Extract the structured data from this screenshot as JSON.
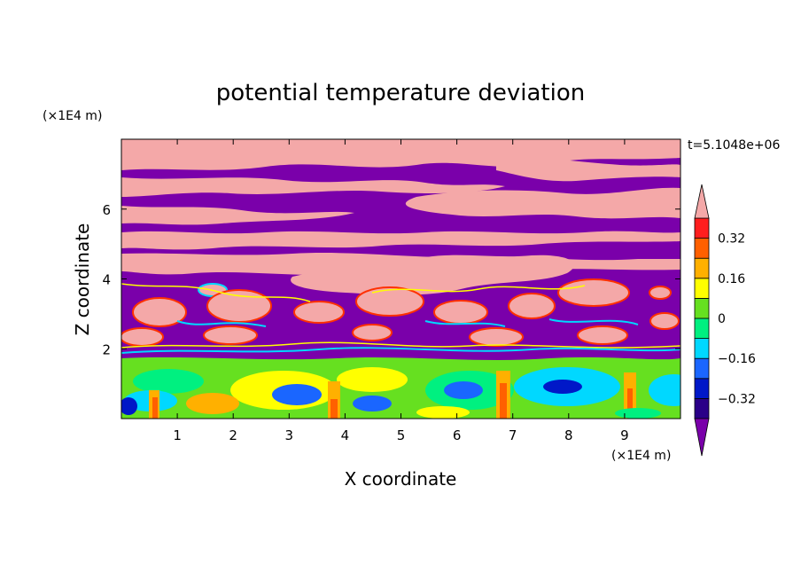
{
  "chart_data": {
    "type": "heatmap",
    "title": "potential temperature deviation",
    "xlabel": "X coordinate",
    "ylabel": "Z coordinate",
    "x_unit": "(×1E4 m)",
    "y_unit": "(×1E4 m)",
    "time_label": "t=5.1048e+06",
    "xlim": [
      0,
      10
    ],
    "ylim": [
      0,
      8
    ],
    "x_ticks": [
      "1",
      "2",
      "3",
      "4",
      "5",
      "6",
      "7",
      "8",
      "9"
    ],
    "y_ticks": [
      "2",
      "4",
      "6"
    ],
    "colorbar": {
      "levels": [
        -0.4,
        -0.32,
        -0.24,
        -0.16,
        -0.08,
        0,
        0.08,
        0.16,
        0.24,
        0.32,
        0.4
      ],
      "labels": [
        "0.32",
        "0.16",
        "0",
        "−0.16",
        "−0.32"
      ],
      "colors": [
        "#7a00aa",
        "#2a0088",
        "#0018c8",
        "#1a66ff",
        "#00d8ff",
        "#00f080",
        "#66e020",
        "#ffff00",
        "#ffb000",
        "#ff6000",
        "#ff1e1e",
        "#f4a8a8"
      ]
    },
    "regions": [
      {
        "band": "z 6.9–8.0",
        "dominant": "pink (> 0.40) with purple (< -0.40) streaks"
      },
      {
        "band": "z 4.3–6.9",
        "dominant": "alternating pink and purple layers"
      },
      {
        "band": "z 1.8–4.3",
        "dominant": "purple background with pink cells, cyan/yellow/red edges"
      },
      {
        "band": "z 0–1.7",
        "dominant": "green/yellow/cyan boundary layer with blue and red eddies"
      }
    ]
  }
}
